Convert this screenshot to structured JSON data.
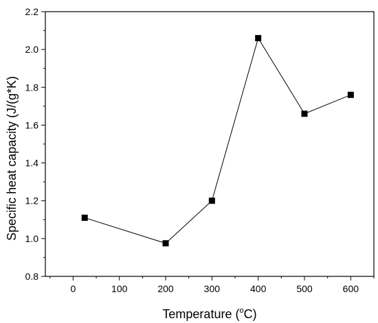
{
  "chart_data": {
    "type": "line",
    "title": "",
    "xlabel_prefix": "Temperature (",
    "xlabel_sup": "o",
    "xlabel_suffix": "C)",
    "ylabel": "Specific heat capacity (J/(g*K)",
    "x": [
      25,
      200,
      300,
      400,
      500,
      600
    ],
    "series": [
      {
        "values": [
          1.11,
          0.975,
          1.2,
          2.06,
          1.66,
          1.76
        ]
      }
    ],
    "xlim": [
      -60,
      650
    ],
    "ylim": [
      0.8,
      2.2
    ],
    "xticks": [
      0,
      100,
      200,
      300,
      400,
      500,
      600
    ],
    "xtick_labels": [
      "0",
      "100",
      "200",
      "300",
      "400",
      "500",
      "600"
    ],
    "yticks": [
      0.8,
      1.0,
      1.2,
      1.4,
      1.6,
      1.8,
      2.0,
      2.2
    ],
    "ytick_labels": [
      "0.8",
      "1.0",
      "1.2",
      "1.4",
      "1.6",
      "1.8",
      "2.0",
      "2.2"
    ],
    "marker": "square",
    "grid": false,
    "colors": {
      "line": "#000000",
      "marker": "#000000"
    }
  }
}
